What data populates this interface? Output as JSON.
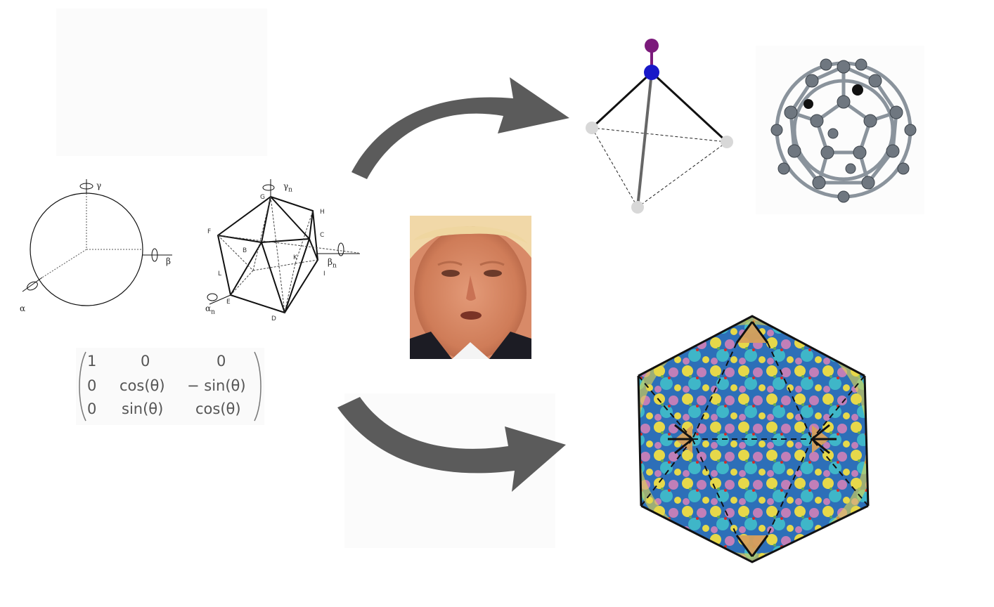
{
  "rotation_labels": {
    "gamma": "γ",
    "beta": "β",
    "alpha": "α",
    "gamma_n": "γ",
    "beta_n": "β",
    "alpha_n": "α",
    "sub_n": "n"
  },
  "icosahedron_vertices": [
    "G",
    "H",
    "F",
    "C",
    "B",
    "K",
    "L",
    "I",
    "E",
    "D"
  ],
  "matrix": {
    "rows": [
      [
        "1",
        "0",
        "0"
      ],
      [
        "0",
        "cos(θ)",
        "− sin(θ)"
      ],
      [
        "0",
        "sin(θ)",
        "cos(θ)"
      ]
    ]
  },
  "icons": [
    "curved-arrow-up",
    "curved-arrow-down",
    "sphere-axes",
    "icosahedron",
    "tetrahedral-molecule",
    "fullerene",
    "virus-capsid",
    "portrait"
  ],
  "colors": {
    "arrow": "#5b5b5b",
    "atom_top": "#7b1a7b",
    "atom_center": "#1818c8",
    "atom_white": "#d8d8d8",
    "fullerene": "#6f7780",
    "capsid_blue": "#2d6fb8",
    "capsid_yellow": "#e6d84a",
    "capsid_pink": "#c17fb8",
    "capsid_cyan": "#3fb6c8",
    "capsid_orange": "#d7a05a"
  }
}
